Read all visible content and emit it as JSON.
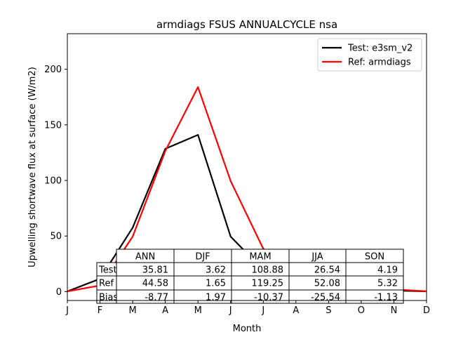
{
  "chart_data": {
    "type": "line",
    "title": "armdiags FSUS ANNUALCYCLE nsa",
    "xlabel": "Month",
    "ylabel": "Upwelling shortwave flux at surface (W/m2)",
    "categories": [
      "J",
      "F",
      "M",
      "A",
      "M",
      "J",
      "J",
      "A",
      "S",
      "O",
      "N",
      "D"
    ],
    "ylim": [
      -8,
      232
    ],
    "yticks": [
      0,
      50,
      100,
      150,
      200
    ],
    "grid": false,
    "legend_position": "upper-right",
    "series": [
      {
        "name": "Test: e3sm_v2",
        "color": "#000000",
        "values": [
          0.2,
          11.5,
          57.5,
          128.5,
          141.0,
          49.5,
          19.5,
          11.0,
          6.5,
          5.0,
          1.0,
          0.2
        ]
      },
      {
        "name": "Ref: armdiags",
        "color": "#ff0000",
        "values": [
          0.2,
          5.5,
          49.5,
          126.5,
          184.0,
          99.5,
          38.5,
          18.5,
          9.5,
          7.0,
          2.0,
          0.3
        ]
      }
    ],
    "table": {
      "col_labels": [
        "ANN",
        "DJF",
        "MAM",
        "JJA",
        "SON"
      ],
      "rows": [
        {
          "label": "Test",
          "values": [
            "35.81",
            "3.62",
            "108.88",
            "26.54",
            "4.19"
          ]
        },
        {
          "label": "Ref",
          "values": [
            "44.58",
            "1.65",
            "119.25",
            "52.08",
            "5.32"
          ]
        },
        {
          "label": "Bias",
          "values": [
            "-8.77",
            "1.97",
            "-10.37",
            "-25.54",
            "-1.13"
          ]
        }
      ]
    }
  }
}
